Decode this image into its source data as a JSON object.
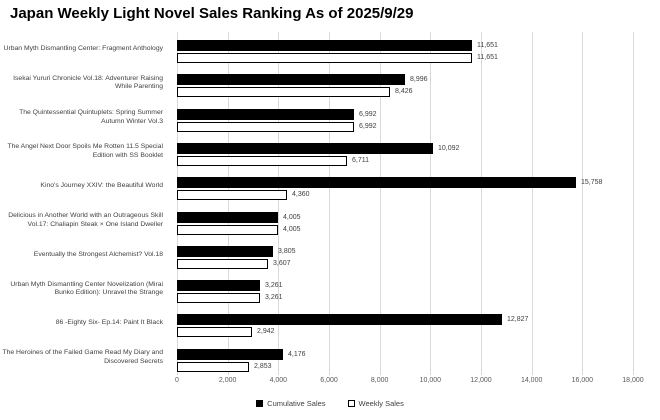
{
  "chart_data": {
    "type": "bar",
    "orientation": "horizontal",
    "title": "Japan Weekly Light Novel Sales Ranking As of 2025/9/29",
    "categories": [
      "Urban Myth Dismantling Center: Fragment Anthology",
      "Isekai Yururi Chronicle Vol.18: Adventurer Raising While Parenting",
      "The Quintessential Quintuplets: Spring Summer Autumn Winter Vol.3",
      "The Angel Next Door Spoils Me Rotten 11.5 Special Edition with SS Booklet",
      "Kino's Journey XXIV: the Beautiful World",
      "Delicious in Another World with an Outrageous Skill Vol.17: Chaliapin Steak × One Island Dweller",
      "Eventually the Strongest Alchemist? Vol.18",
      "Urban Myth Dismantling Center Novelization (Mirai Bunko Edition): Unravel the Strange",
      "86 -Eighty Six- Ep.14: Paint It Black",
      "The Heroines of the Failed Game Read My Diary and Discovered Secrets"
    ],
    "series": [
      {
        "name": "Cumulative Sales",
        "color": "#000000",
        "values": [
          11651,
          8996,
          6992,
          10092,
          15758,
          4005,
          3805,
          3261,
          12827,
          4176
        ]
      },
      {
        "name": "Weekly Sales",
        "color": "#ffffff",
        "values": [
          11651,
          8426,
          6992,
          6711,
          4360,
          4005,
          3607,
          3261,
          2942,
          2853
        ]
      }
    ],
    "xlim": [
      0,
      18000
    ],
    "x_ticks": [
      0,
      2000,
      4000,
      6000,
      8000,
      10000,
      12000,
      14000,
      16000,
      18000
    ],
    "grid": true,
    "data_labels": true,
    "legend_position": "bottom"
  },
  "colors": {
    "background": "#ffffff",
    "bar_fill": "#000000",
    "bar_border": "#000000",
    "grid": "#d9d9d9",
    "label_text": "#404040",
    "axis_text": "#595959"
  }
}
